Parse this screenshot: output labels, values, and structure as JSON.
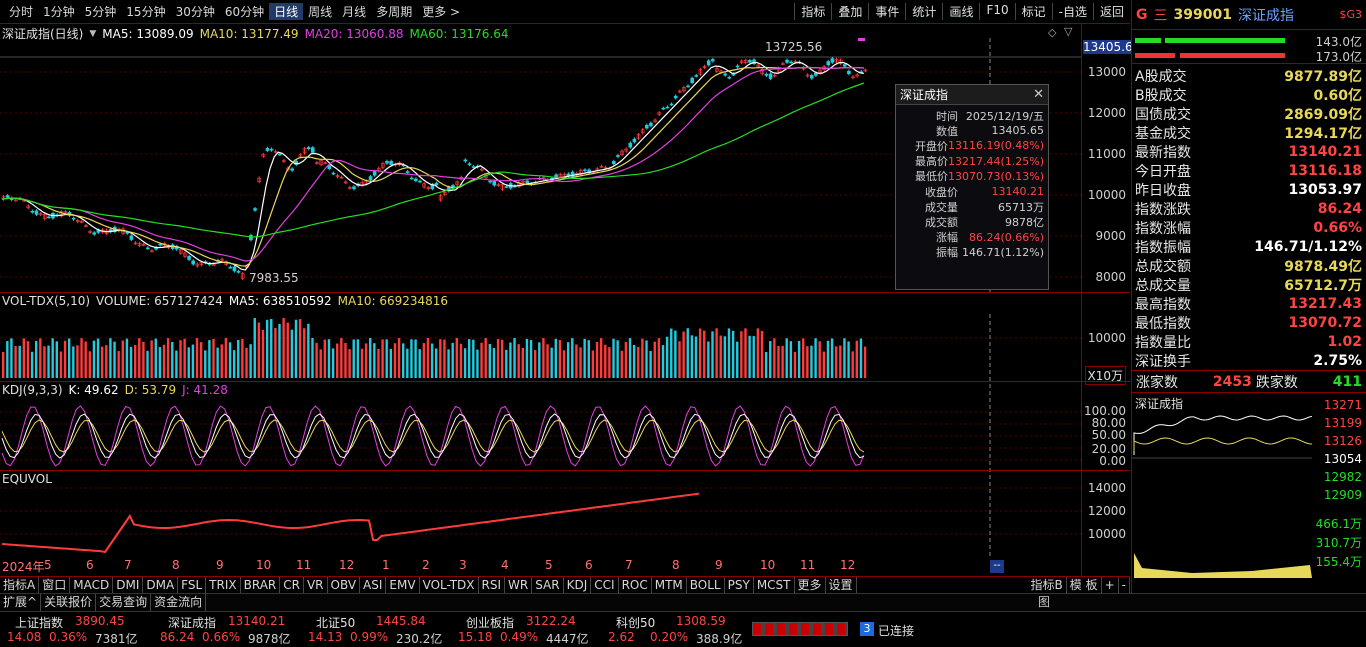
{
  "toolbar": {
    "periods": [
      "分时",
      "1分钟",
      "5分钟",
      "15分钟",
      "30分钟",
      "60分钟",
      "日线",
      "周线",
      "月线",
      "多周期",
      "更多 >"
    ],
    "active_period": "日线",
    "tools": [
      "指标",
      "叠加",
      "事件",
      "统计",
      "画线",
      "F10",
      "标记",
      "-自选",
      "返回"
    ]
  },
  "main_chart": {
    "title": "深证成指(日线)",
    "ma": [
      {
        "label": "MA5: 13089.09",
        "color": "#ffffff"
      },
      {
        "label": "MA10: 13177.49",
        "color": "#e8d85a"
      },
      {
        "label": "MA20: 13060.88",
        "color": "#e040e0"
      },
      {
        "label": "MA60: 13176.64",
        "color": "#22dd22"
      }
    ],
    "high_label": "13725.56",
    "low_label": "7983.55",
    "cursor_price": "13405.6",
    "y_ticks": [
      "13000",
      "12000",
      "11000",
      "10000",
      "9000",
      "8000"
    ]
  },
  "tooltip": {
    "title": "深证成指",
    "rows": [
      {
        "k": "时间",
        "v": "2025/12/19/五",
        "c": ""
      },
      {
        "k": "数值",
        "v": "13405.65",
        "c": ""
      },
      {
        "k": "开盘价",
        "v": "13116.19(0.48%)",
        "c": "red"
      },
      {
        "k": "最高价",
        "v": "13217.44(1.25%)",
        "c": "red"
      },
      {
        "k": "最低价",
        "v": "13070.73(0.13%)",
        "c": "red"
      },
      {
        "k": "收盘价",
        "v": "13140.21",
        "c": "red"
      },
      {
        "k": "成交量",
        "v": "65713万",
        "c": ""
      },
      {
        "k": "成交额",
        "v": "9878亿",
        "c": ""
      },
      {
        "k": "涨幅",
        "v": "86.24(0.66%)",
        "c": "red"
      },
      {
        "k": "振幅",
        "v": "146.71(1.12%)",
        "c": ""
      }
    ]
  },
  "vol_panel": {
    "title": "VOL-TDX(5,10)",
    "volume": "VOLUME: 657127424",
    "ma5": "MA5: 638510592",
    "ma10": "MA10: 669234816",
    "y_tick": "10000",
    "unit": "X10万"
  },
  "kdj_panel": {
    "title": "KDJ(9,3,3)",
    "k": "K: 49.62",
    "d": "D: 53.79",
    "j": "J: 41.28",
    "y_ticks": [
      "100.00",
      "80.00",
      "50.00",
      "20.00",
      "0.00"
    ]
  },
  "equvol_panel": {
    "title": "EQUVOL",
    "y_ticks": [
      "14000",
      "12000",
      "10000"
    ]
  },
  "x_axis": [
    "2024年",
    "5",
    "6",
    "7",
    "8",
    "9",
    "10",
    "11",
    "12",
    "1",
    "2",
    "3",
    "4",
    "5",
    "6",
    "7",
    "8",
    "9",
    "10",
    "11",
    "12"
  ],
  "indicator_tabs": [
    "指标A",
    "窗口",
    "MACD",
    "DMI",
    "DMA",
    "FSL",
    "TRIX",
    "BRAR",
    "CR",
    "VR",
    "OBV",
    "ASI",
    "EMV",
    "VOL-TDX",
    "RSI",
    "WR",
    "SAR",
    "KDJ",
    "CCI",
    "ROC",
    "MTM",
    "BOLL",
    "PSY",
    "MCST",
    "更多",
    "设置"
  ],
  "indicator_tabs_right": [
    "指标B",
    "模 板",
    "+",
    "-"
  ],
  "sub_tabs": [
    "扩展^",
    "关联报价",
    "交易查询",
    "资金流向"
  ],
  "sub_tabs_right": "图",
  "status_indices": [
    {
      "name": "上证指数",
      "value": "3890.45",
      "chg": "14.08",
      "pct": "0.36%",
      "amount": "7381亿"
    },
    {
      "name": "深证成指",
      "value": "13140.21",
      "chg": "86.24",
      "pct": "0.66%",
      "amount": "9878亿"
    },
    {
      "name": "北证50",
      "value": "1445.84",
      "chg": "14.13",
      "pct": "0.99%",
      "amount": "230.2亿"
    },
    {
      "name": "创业板指",
      "value": "3122.24",
      "chg": "15.18",
      "pct": "0.49%",
      "amount": "4447亿"
    },
    {
      "name": "科创50",
      "value": "1308.59",
      "chg": "2.62",
      "pct": "0.20%",
      "amount": "388.9亿"
    }
  ],
  "connection": {
    "count": "3",
    "label": "已连接"
  },
  "right_panel": {
    "code": "399001",
    "name": "深证成指",
    "mark": "G",
    "menu": "三",
    "badge": "$G3",
    "bar1": "143.0亿",
    "bar2": "173.0亿",
    "rows": [
      {
        "k": "A股成交",
        "v": "9877.89亿",
        "c": "yellow"
      },
      {
        "k": "B股成交",
        "v": "0.60亿",
        "c": "yellow"
      },
      {
        "k": "国债成交",
        "v": "2869.09亿",
        "c": "yellow"
      },
      {
        "k": "基金成交",
        "v": "1294.17亿",
        "c": "yellow"
      },
      {
        "k": "最新指数",
        "v": "13140.21",
        "c": "red"
      },
      {
        "k": "今日开盘",
        "v": "13116.18",
        "c": "red"
      },
      {
        "k": "昨日收盘",
        "v": "13053.97",
        "c": "white"
      },
      {
        "k": "指数涨跌",
        "v": "86.24",
        "c": "red"
      },
      {
        "k": "指数涨幅",
        "v": "0.66%",
        "c": "red"
      },
      {
        "k": "指数振幅",
        "v": "146.71/1.12%",
        "c": "white"
      },
      {
        "k": "总成交额",
        "v": "9878.49亿",
        "c": "yellow"
      },
      {
        "k": "总成交量",
        "v": "65712.7万",
        "c": "yellow"
      },
      {
        "k": "最高指数",
        "v": "13217.43",
        "c": "red"
      },
      {
        "k": "最低指数",
        "v": "13070.72",
        "c": "red"
      },
      {
        "k": "指数量比",
        "v": "1.02",
        "c": "red"
      },
      {
        "k": "深证换手",
        "v": "2.75%",
        "c": "white"
      }
    ],
    "up_label": "涨家数",
    "up_count": "2453",
    "down_label": "跌家数",
    "down_count": "411",
    "mini_title": "深证成指",
    "mini_ticks": [
      "13271",
      "13199",
      "13126",
      "13054",
      "12982",
      "12909"
    ],
    "mini_pct": [
      "466.1万",
      "310.7万",
      "155.4万"
    ]
  }
}
